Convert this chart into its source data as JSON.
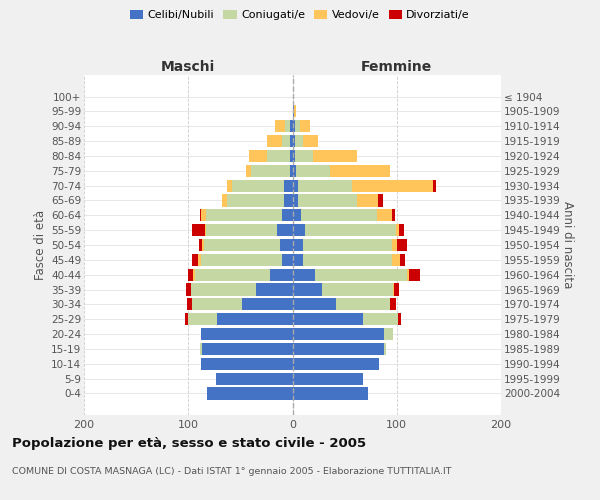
{
  "age_groups_display": [
    "100+",
    "95-99",
    "90-94",
    "85-89",
    "80-84",
    "75-79",
    "70-74",
    "65-69",
    "60-64",
    "55-59",
    "50-54",
    "45-49",
    "40-44",
    "35-39",
    "30-34",
    "25-29",
    "20-24",
    "15-19",
    "10-14",
    "5-9",
    "0-4"
  ],
  "birth_years_display": [
    "≤ 1904",
    "1905-1909",
    "1910-1914",
    "1915-1919",
    "1920-1924",
    "1925-1929",
    "1930-1934",
    "1935-1939",
    "1940-1944",
    "1945-1949",
    "1950-1954",
    "1955-1959",
    "1960-1964",
    "1965-1969",
    "1970-1974",
    "1975-1979",
    "1980-1984",
    "1985-1989",
    "1990-1994",
    "1995-1999",
    "2000-2004"
  ],
  "male_celibi": [
    82,
    73,
    88,
    87,
    88,
    72,
    48,
    35,
    22,
    10,
    12,
    15,
    10,
    8,
    8,
    2,
    2,
    2,
    2,
    0,
    0
  ],
  "male_coniugati": [
    0,
    0,
    0,
    2,
    0,
    28,
    48,
    62,
    72,
    78,
    73,
    68,
    73,
    55,
    50,
    38,
    22,
    8,
    5,
    0,
    0
  ],
  "male_vedovi": [
    0,
    0,
    0,
    0,
    0,
    0,
    0,
    0,
    1,
    3,
    2,
    1,
    5,
    5,
    5,
    5,
    18,
    14,
    10,
    0,
    0
  ],
  "male_divorziati": [
    0,
    0,
    0,
    0,
    0,
    3,
    5,
    5,
    5,
    5,
    3,
    12,
    1,
    0,
    0,
    0,
    0,
    0,
    0,
    0,
    0
  ],
  "female_celibi": [
    72,
    68,
    83,
    88,
    88,
    68,
    42,
    28,
    22,
    10,
    10,
    12,
    8,
    5,
    5,
    3,
    2,
    2,
    2,
    1,
    0
  ],
  "female_coniugati": [
    0,
    0,
    0,
    2,
    8,
    33,
    52,
    68,
    88,
    85,
    85,
    87,
    73,
    57,
    52,
    33,
    18,
    8,
    5,
    0,
    0
  ],
  "female_vedovi": [
    0,
    0,
    0,
    0,
    0,
    0,
    0,
    1,
    2,
    8,
    5,
    3,
    14,
    20,
    78,
    58,
    42,
    14,
    10,
    2,
    0
  ],
  "female_divorziati": [
    0,
    0,
    0,
    0,
    0,
    3,
    5,
    5,
    10,
    5,
    10,
    5,
    3,
    5,
    3,
    0,
    0,
    0,
    0,
    0,
    0
  ],
  "colors": {
    "celibi": "#4472c4",
    "coniugati": "#c5d8a4",
    "vedovi": "#ffc55a",
    "divorziati": "#cc0000"
  },
  "title": "Popolazione per età, sesso e stato civile - 2005",
  "subtitle": "COMUNE DI COSTA MASNAGA (LC) - Dati ISTAT 1° gennaio 2005 - Elaborazione TUTTITALIA.IT",
  "xlabel_left": "Maschi",
  "xlabel_right": "Femmine",
  "ylabel_left": "Fasce di età",
  "ylabel_right": "Anni di nascita",
  "xlim": 200,
  "bg_color": "#f0f0f0",
  "plot_bg": "#ffffff"
}
